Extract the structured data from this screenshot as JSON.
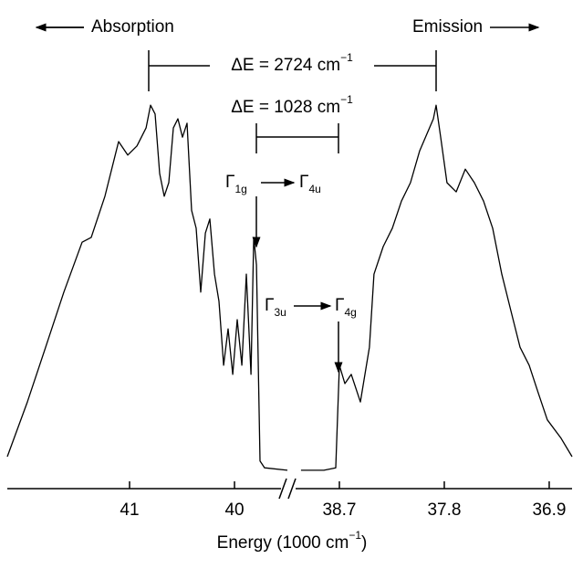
{
  "chart_data": [
    {
      "type": "line",
      "xlabel": "Energy (1000 cm",
      "xlabel_sup": "−1",
      "xlabel_end": ")",
      "xlim": [
        42.165,
        39.496
      ],
      "xticks": [
        41,
        40
      ],
      "ylim": [
        0,
        100
      ],
      "x": [
        42.165,
        41.974,
        41.8,
        41.626,
        41.452,
        41.365,
        41.235,
        41.104,
        41.017,
        40.93,
        40.843,
        40.8,
        40.757,
        40.713,
        40.67,
        40.626,
        40.583,
        40.539,
        40.496,
        40.452,
        40.409,
        40.365,
        40.322,
        40.278,
        40.235,
        40.191,
        40.148,
        40.104,
        40.061,
        40.017,
        39.974,
        39.93,
        39.887,
        39.843,
        39.817,
        39.791,
        39.757,
        39.713,
        39.496
      ],
      "series": [
        {
          "name": "Absorption",
          "color": "#000000",
          "values": [
            6.6,
            17.9,
            29.2,
            40.6,
            50.9,
            51.9,
            60.4,
            71.7,
            68.9,
            70.8,
            74.5,
            79.2,
            77.4,
            65.1,
            60.4,
            63.2,
            74.5,
            76.4,
            72.6,
            75.5,
            57.5,
            53.8,
            40.6,
            52.8,
            55.7,
            44.3,
            38.7,
            25.5,
            33.0,
            23.6,
            34.9,
            25.5,
            44.3,
            23.6,
            51.9,
            46.2,
            5.7,
            4.3,
            3.8
          ]
        }
      ]
    },
    {
      "type": "line",
      "xlim": [
        39.146,
        36.704
      ],
      "xticks": [
        38.7,
        37.8,
        36.9
      ],
      "ylim": [
        0,
        100
      ],
      "x": [
        39.029,
        38.833,
        38.731,
        38.7,
        38.653,
        38.598,
        38.52,
        38.442,
        38.403,
        38.324,
        38.246,
        38.168,
        38.09,
        38.011,
        37.894,
        37.87,
        37.831,
        37.777,
        37.698,
        37.62,
        37.542,
        37.463,
        37.385,
        37.307,
        37.229,
        37.15,
        37.072,
        36.994,
        36.916,
        36.798,
        36.704
      ],
      "series": [
        {
          "name": "Emission",
          "color": "#000000",
          "values": [
            3.8,
            3.8,
            4.3,
            25.5,
            21.7,
            23.6,
            17.9,
            29.2,
            44.3,
            50.0,
            53.8,
            59.4,
            63.2,
            69.8,
            76.4,
            79.2,
            72.6,
            63.2,
            61.3,
            66.0,
            63.2,
            59.4,
            53.8,
            44.3,
            36.8,
            29.2,
            25.5,
            19.8,
            14.2,
            10.4,
            6.6
          ]
        }
      ]
    }
  ],
  "annotations": {
    "de1": {
      "text": "ΔE = 2724 cm",
      "sup": "−1"
    },
    "de2": {
      "text": "ΔE = 1028 cm",
      "sup": "−1"
    },
    "t1": [
      {
        "symbol": "Γ",
        "sub": "1g"
      },
      {
        "symbol": "Γ",
        "sub": "4u"
      }
    ],
    "t2": [
      {
        "symbol": "Γ",
        "sub": "3u"
      },
      {
        "symbol": "Γ",
        "sub": "4g"
      }
    ]
  }
}
